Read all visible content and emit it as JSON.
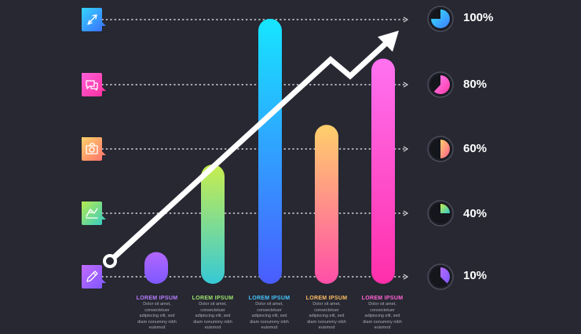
{
  "chart_data": {
    "type": "bar",
    "categories": [
      "LOREM IPSUM",
      "LOREM IPSUM",
      "LOREM IPSUM",
      "LOREM IPSUM",
      "LOREM IPSUM"
    ],
    "values": [
      12,
      45,
      100,
      60,
      85
    ],
    "ylim": [
      0,
      100
    ],
    "y_ticks": [
      "10%",
      "40%",
      "60%",
      "80%",
      "100%"
    ],
    "bar_colors": [
      [
        "#b267ff",
        "#7d58ff"
      ],
      [
        "#c8ee4e",
        "#36c9d6"
      ],
      [
        "#16e6ff",
        "#4a5cff"
      ],
      [
        "#ffd06b",
        "#ff4fa8"
      ],
      [
        "#ff72f0",
        "#ff2faa"
      ]
    ],
    "captions": [
      {
        "title": "LOREM IPSUM",
        "color": "#b77cff",
        "lines": [
          "Dolor sit amet,",
          "consectetuer",
          "adipiscing elit, sed",
          "diam nonummy nibh",
          "euismod"
        ]
      },
      {
        "title": "LOREM IPSUM",
        "color": "#9de36b",
        "lines": [
          "Dolor sit amet,",
          "consectetuer",
          "adipiscing elit, sed",
          "diam nonummy nibh",
          "euismod"
        ]
      },
      {
        "title": "LOREM IPSUM",
        "color": "#45c6ff",
        "lines": [
          "Dolor sit amet,",
          "consectetuer",
          "adipiscing elit, sed",
          "diam nonummy nibh",
          "euismod"
        ]
      },
      {
        "title": "LOREM IPSUM",
        "color": "#ffbe63",
        "lines": [
          "Dolor sit amet,",
          "consectetuer",
          "adipiscing elit, sed",
          "diam nonummy nibh",
          "euismod"
        ]
      },
      {
        "title": "LOREM IPSUM",
        "color": "#ff63d4",
        "lines": [
          "Dolor sit amet,",
          "consectetuer",
          "adipiscing elit, sed",
          "diam nonummy nibh",
          "euismod"
        ]
      }
    ],
    "trend_arrow_color": "#ffffff",
    "grid": "dotted",
    "legend": "none"
  },
  "levels": [
    {
      "label": "100%",
      "fraction": 0.75,
      "icon": "rocket-icon",
      "icon_colors": [
        "#36d4ff",
        "#3a6bff"
      ],
      "dial_colors": [
        "#37e4ff",
        "#3d7bff"
      ]
    },
    {
      "label": "80%",
      "fraction": 0.62,
      "icon": "chat-bubbles-icon",
      "icon_colors": [
        "#ff5fd8",
        "#ff2f9e"
      ],
      "dial_colors": [
        "#ff7ff0",
        "#ff3aa8"
      ]
    },
    {
      "label": "60%",
      "fraction": 0.5,
      "icon": "camera-icon",
      "icon_colors": [
        "#ffd36a",
        "#ff6b6b"
      ],
      "dial_colors": [
        "#ffd06b",
        "#ff5c8e"
      ]
    },
    {
      "label": "40%",
      "fraction": 0.25,
      "icon": "map-icon",
      "icon_colors": [
        "#b6ec4f",
        "#2fc9c9"
      ],
      "dial_colors": [
        "#c8ee4e",
        "#30c9c9"
      ]
    },
    {
      "label": "10%",
      "fraction": 0.375,
      "icon": "pencil-icon",
      "icon_colors": [
        "#c36bff",
        "#7b56ff"
      ],
      "dial_colors": [
        "#b56bff",
        "#7d58ff"
      ]
    }
  ]
}
